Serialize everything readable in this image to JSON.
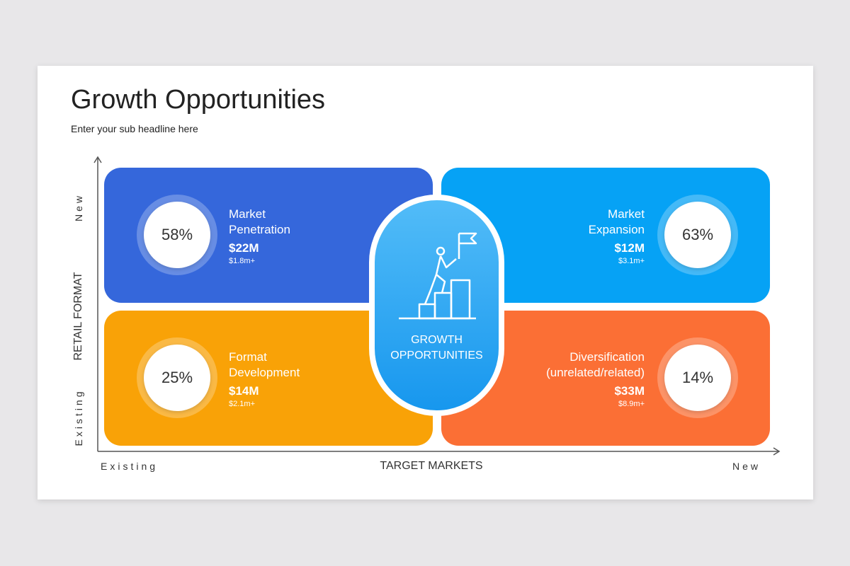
{
  "header": {
    "title": "Growth Opportunities",
    "subtitle": "Enter your sub headline here"
  },
  "axes": {
    "y": {
      "label": "RETAIL FORMAT",
      "low": "Existing",
      "high": "New"
    },
    "x": {
      "label": "TARGET MARKETS",
      "low": "Existing",
      "high": "New"
    }
  },
  "center": {
    "lines": [
      "GROWTH",
      "OPPORTUNITIES"
    ]
  },
  "quadrants": [
    {
      "percent": "58%",
      "name_lines": [
        "Market",
        "Penetration"
      ],
      "amount": "$22M",
      "detail": "$1.8m+"
    },
    {
      "percent": "63%",
      "name_lines": [
        "Market",
        "Expansion"
      ],
      "amount": "$12M",
      "detail": "$3.1m+"
    },
    {
      "percent": "25%",
      "name_lines": [
        "Format",
        "Development"
      ],
      "amount": "$14M",
      "detail": "$2.1m+"
    },
    {
      "percent": "14%",
      "name_lines": [
        "Diversification",
        "(unrelated/related)"
      ],
      "amount": "$33M",
      "detail": "$8.9m+"
    }
  ]
}
